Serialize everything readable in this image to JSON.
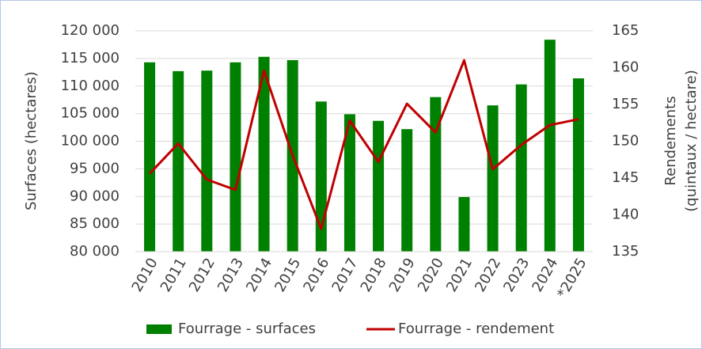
{
  "chart_data": {
    "type": "bar-line",
    "categories": [
      "2010",
      "2011",
      "2012",
      "2013",
      "2014",
      "2015",
      "2016",
      "2017",
      "2018",
      "2019",
      "2020",
      "2021",
      "2022",
      "2023",
      "2024",
      "*2025"
    ],
    "series": [
      {
        "name": "Fourrage - surfaces",
        "type": "bar",
        "color": "#008000",
        "values": [
          114300,
          112700,
          112800,
          114300,
          115300,
          114700,
          107200,
          104900,
          103700,
          102200,
          108000,
          89900,
          106500,
          110300,
          118400,
          111400
        ]
      },
      {
        "name": "Fourrage - rendement",
        "type": "line",
        "axis": "y2",
        "color": "#c00000",
        "values": [
          145.6,
          149.7,
          144.8,
          143.4,
          159.6,
          148.1,
          138.1,
          152.8,
          147.2,
          155.1,
          151.2,
          161,
          146.2,
          149.5,
          152.2,
          153
        ]
      }
    ],
    "ylabel": "Surfaces (hectares)",
    "y2label": [
      "Rendements",
      "(quintaux / hectare)"
    ],
    "ylim": [
      80000,
      120000
    ],
    "yticks": [
      {
        "value": 80000,
        "label": "80 000"
      },
      {
        "value": 85000,
        "label": "85 000"
      },
      {
        "value": 90000,
        "label": "90 000"
      },
      {
        "value": 95000,
        "label": "95 000"
      },
      {
        "value": 100000,
        "label": "100 000"
      },
      {
        "value": 105000,
        "label": "105 000"
      },
      {
        "value": 110000,
        "label": "110 000"
      },
      {
        "value": 115000,
        "label": "115 000"
      },
      {
        "value": 120000,
        "label": "120 000"
      }
    ],
    "y2lim": [
      135,
      165
    ],
    "y2ticks": [
      135,
      140,
      145,
      150,
      155,
      160,
      165
    ],
    "grid": true,
    "legend": "bottom"
  }
}
